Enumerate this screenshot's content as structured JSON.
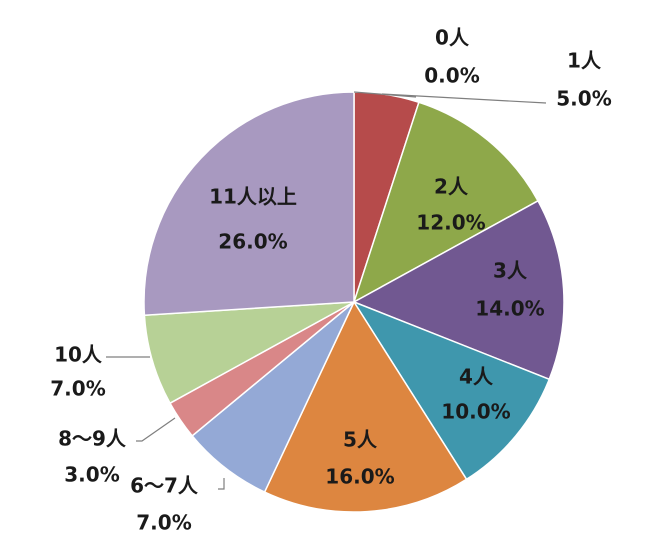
{
  "chart_data": {
    "type": "pie",
    "start_angle_deg": 0,
    "direction": "clockwise",
    "slices": [
      {
        "label": "0人",
        "value": 0.0,
        "value_label": "0.0%",
        "color": "#4472c4"
      },
      {
        "label": "1人",
        "value": 5.0,
        "value_label": "5.0%",
        "color": "#b64b4b"
      },
      {
        "label": "2人",
        "value": 12.0,
        "value_label": "12.0%",
        "color": "#8ea84a"
      },
      {
        "label": "3人",
        "value": 14.0,
        "value_label": "14.0%",
        "color": "#715891"
      },
      {
        "label": "4人",
        "value": 10.0,
        "value_label": "10.0%",
        "color": "#3f97ad"
      },
      {
        "label": "5人",
        "value": 16.0,
        "value_label": "16.0%",
        "color": "#dd8640"
      },
      {
        "label": "6～7人",
        "value": 7.0,
        "value_label": "7.0%",
        "color": "#94a9d6"
      },
      {
        "label": "8～9人",
        "value": 3.0,
        "value_label": "3.0%",
        "color": "#d98788"
      },
      {
        "label": "10人",
        "value": 7.0,
        "value_label": "7.0%",
        "color": "#b7d196"
      },
      {
        "label": "11人以上",
        "value": 26.0,
        "value_label": "26.0%",
        "color": "#a899c0"
      }
    ]
  }
}
